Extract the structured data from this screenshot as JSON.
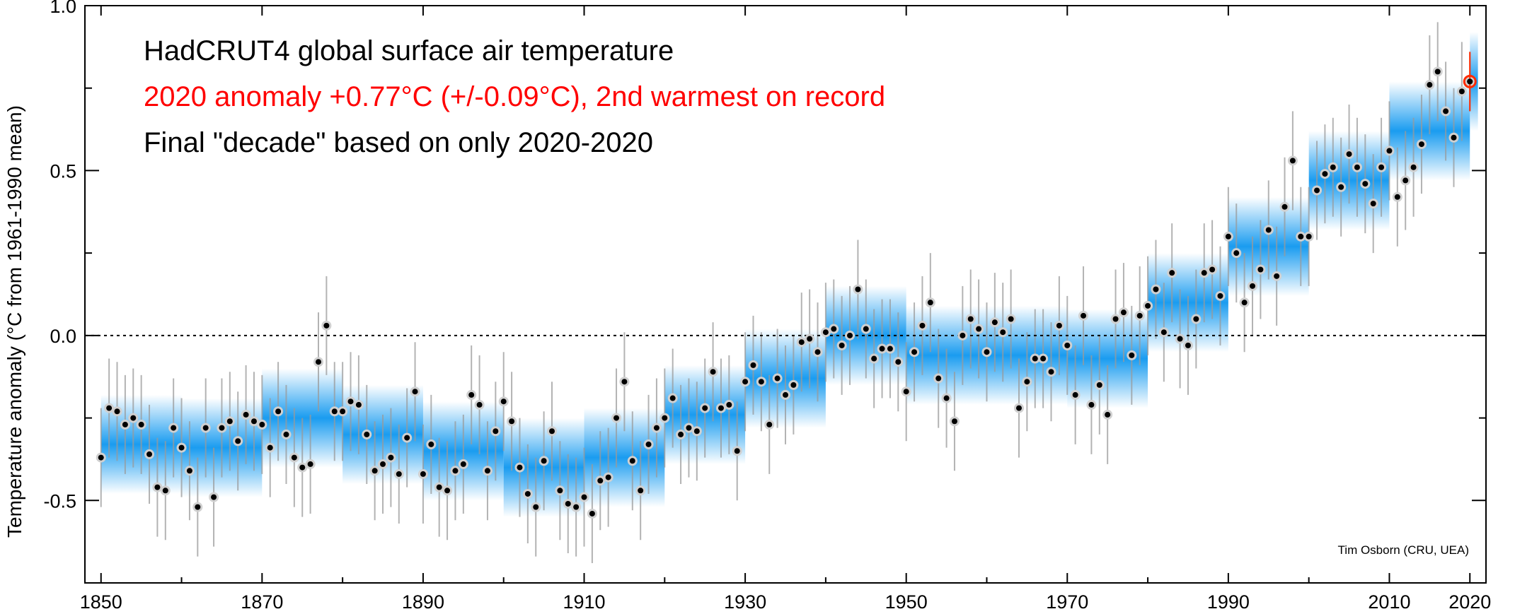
{
  "colors": {
    "decade_band": "#1a9cf0",
    "error_bar": "#9a9a9a",
    "point": "#000000",
    "point_halo": "#d0d0d0",
    "highlight": "#ff2a00",
    "title": "#000000",
    "subtitle": "#ff0000"
  },
  "chart_data": {
    "type": "scatter",
    "title": "HadCRUT4 global surface air temperature",
    "subtitle": "2020 anomaly +0.77°C (+/-0.09°C), 2nd warmest on record",
    "note": "Final \"decade\" based on only 2020-2020",
    "ylabel": "Temperature anomaly (°C from 1961-1990 mean)",
    "xlabel": "",
    "credit": "Tim Osborn (CRU, UEA)",
    "xlim": [
      1848,
      2022
    ],
    "ylim": [
      -0.75,
      1.0
    ],
    "xticks": [
      1850,
      1870,
      1890,
      1910,
      1930,
      1950,
      1970,
      1990,
      2010,
      2020
    ],
    "yticks": [
      -0.5,
      0.0,
      0.5,
      1.0
    ],
    "ytick_labels": [
      "-0.5",
      "0.0",
      "0.5",
      "1.0"
    ],
    "zero_line": "dotted",
    "grid": false,
    "x": [
      1850,
      1851,
      1852,
      1853,
      1854,
      1855,
      1856,
      1857,
      1858,
      1859,
      1860,
      1861,
      1862,
      1863,
      1864,
      1865,
      1866,
      1867,
      1868,
      1869,
      1870,
      1871,
      1872,
      1873,
      1874,
      1875,
      1876,
      1877,
      1878,
      1879,
      1880,
      1881,
      1882,
      1883,
      1884,
      1885,
      1886,
      1887,
      1888,
      1889,
      1890,
      1891,
      1892,
      1893,
      1894,
      1895,
      1896,
      1897,
      1898,
      1899,
      1900,
      1901,
      1902,
      1903,
      1904,
      1905,
      1906,
      1907,
      1908,
      1909,
      1910,
      1911,
      1912,
      1913,
      1914,
      1915,
      1916,
      1917,
      1918,
      1919,
      1920,
      1921,
      1922,
      1923,
      1924,
      1925,
      1926,
      1927,
      1928,
      1929,
      1930,
      1931,
      1932,
      1933,
      1934,
      1935,
      1936,
      1937,
      1938,
      1939,
      1940,
      1941,
      1942,
      1943,
      1944,
      1945,
      1946,
      1947,
      1948,
      1949,
      1950,
      1951,
      1952,
      1953,
      1954,
      1955,
      1956,
      1957,
      1958,
      1959,
      1960,
      1961,
      1962,
      1963,
      1964,
      1965,
      1966,
      1967,
      1968,
      1969,
      1970,
      1971,
      1972,
      1973,
      1974,
      1975,
      1976,
      1977,
      1978,
      1979,
      1980,
      1981,
      1982,
      1983,
      1984,
      1985,
      1986,
      1987,
      1988,
      1989,
      1990,
      1991,
      1992,
      1993,
      1994,
      1995,
      1996,
      1997,
      1998,
      1999,
      2000,
      2001,
      2002,
      2003,
      2004,
      2005,
      2006,
      2007,
      2008,
      2009,
      2010,
      2011,
      2012,
      2013,
      2014,
      2015,
      2016,
      2017,
      2018,
      2019,
      2020
    ],
    "y": [
      -0.37,
      -0.22,
      -0.23,
      -0.27,
      -0.25,
      -0.27,
      -0.36,
      -0.46,
      -0.47,
      -0.28,
      -0.34,
      -0.41,
      -0.52,
      -0.28,
      -0.49,
      -0.28,
      -0.26,
      -0.32,
      -0.24,
      -0.26,
      -0.27,
      -0.34,
      -0.23,
      -0.3,
      -0.37,
      -0.4,
      -0.39,
      -0.08,
      0.03,
      -0.23,
      -0.23,
      -0.2,
      -0.21,
      -0.3,
      -0.41,
      -0.39,
      -0.37,
      -0.42,
      -0.31,
      -0.17,
      -0.42,
      -0.33,
      -0.46,
      -0.47,
      -0.41,
      -0.39,
      -0.18,
      -0.21,
      -0.41,
      -0.29,
      -0.2,
      -0.26,
      -0.4,
      -0.48,
      -0.52,
      -0.38,
      -0.29,
      -0.47,
      -0.51,
      -0.52,
      -0.49,
      -0.54,
      -0.44,
      -0.43,
      -0.25,
      -0.14,
      -0.38,
      -0.47,
      -0.33,
      -0.28,
      -0.25,
      -0.19,
      -0.3,
      -0.28,
      -0.29,
      -0.22,
      -0.11,
      -0.22,
      -0.21,
      -0.35,
      -0.14,
      -0.09,
      -0.14,
      -0.27,
      -0.13,
      -0.18,
      -0.15,
      -0.02,
      -0.01,
      -0.05,
      0.01,
      0.02,
      -0.03,
      0.0,
      0.14,
      0.02,
      -0.07,
      -0.04,
      -0.04,
      -0.08,
      -0.17,
      -0.05,
      0.03,
      0.1,
      -0.13,
      -0.19,
      -0.26,
      0.0,
      0.05,
      0.02,
      -0.05,
      0.04,
      0.01,
      0.05,
      -0.22,
      -0.14,
      -0.07,
      -0.07,
      -0.11,
      0.03,
      -0.03,
      -0.18,
      0.06,
      -0.21,
      -0.15,
      -0.24,
      0.05,
      0.07,
      -0.06,
      0.06,
      0.09,
      0.14,
      0.01,
      0.19,
      -0.01,
      -0.03,
      0.05,
      0.19,
      0.2,
      0.12,
      0.3,
      0.25,
      0.1,
      0.15,
      0.2,
      0.32,
      0.18,
      0.39,
      0.53,
      0.3,
      0.3,
      0.44,
      0.49,
      0.51,
      0.45,
      0.55,
      0.51,
      0.46,
      0.4,
      0.51,
      0.56,
      0.42,
      0.47,
      0.51,
      0.58,
      0.76,
      0.8,
      0.68,
      0.6,
      0.74,
      0.77
    ],
    "uncertainty": 0.15,
    "decades": [
      {
        "start": 1850,
        "end": 1860,
        "value": -0.33
      },
      {
        "start": 1860,
        "end": 1870,
        "value": -0.34
      },
      {
        "start": 1870,
        "end": 1880,
        "value": -0.25
      },
      {
        "start": 1880,
        "end": 1890,
        "value": -0.3
      },
      {
        "start": 1890,
        "end": 1900,
        "value": -0.35
      },
      {
        "start": 1900,
        "end": 1910,
        "value": -0.4
      },
      {
        "start": 1910,
        "end": 1920,
        "value": -0.37
      },
      {
        "start": 1920,
        "end": 1930,
        "value": -0.24
      },
      {
        "start": 1930,
        "end": 1940,
        "value": -0.13
      },
      {
        "start": 1940,
        "end": 1950,
        "value": 0.0
      },
      {
        "start": 1950,
        "end": 1960,
        "value": -0.06
      },
      {
        "start": 1960,
        "end": 1970,
        "value": -0.06
      },
      {
        "start": 1970,
        "end": 1980,
        "value": -0.07
      },
      {
        "start": 1980,
        "end": 1990,
        "value": 0.1
      },
      {
        "start": 1990,
        "end": 2000,
        "value": 0.27
      },
      {
        "start": 2000,
        "end": 2010,
        "value": 0.47
      },
      {
        "start": 2010,
        "end": 2020,
        "value": 0.62
      },
      {
        "start": 2020,
        "end": 2021,
        "value": 0.77
      }
    ],
    "highlight": {
      "x": 2020,
      "y": 0.77,
      "uncertainty": 0.09
    }
  }
}
